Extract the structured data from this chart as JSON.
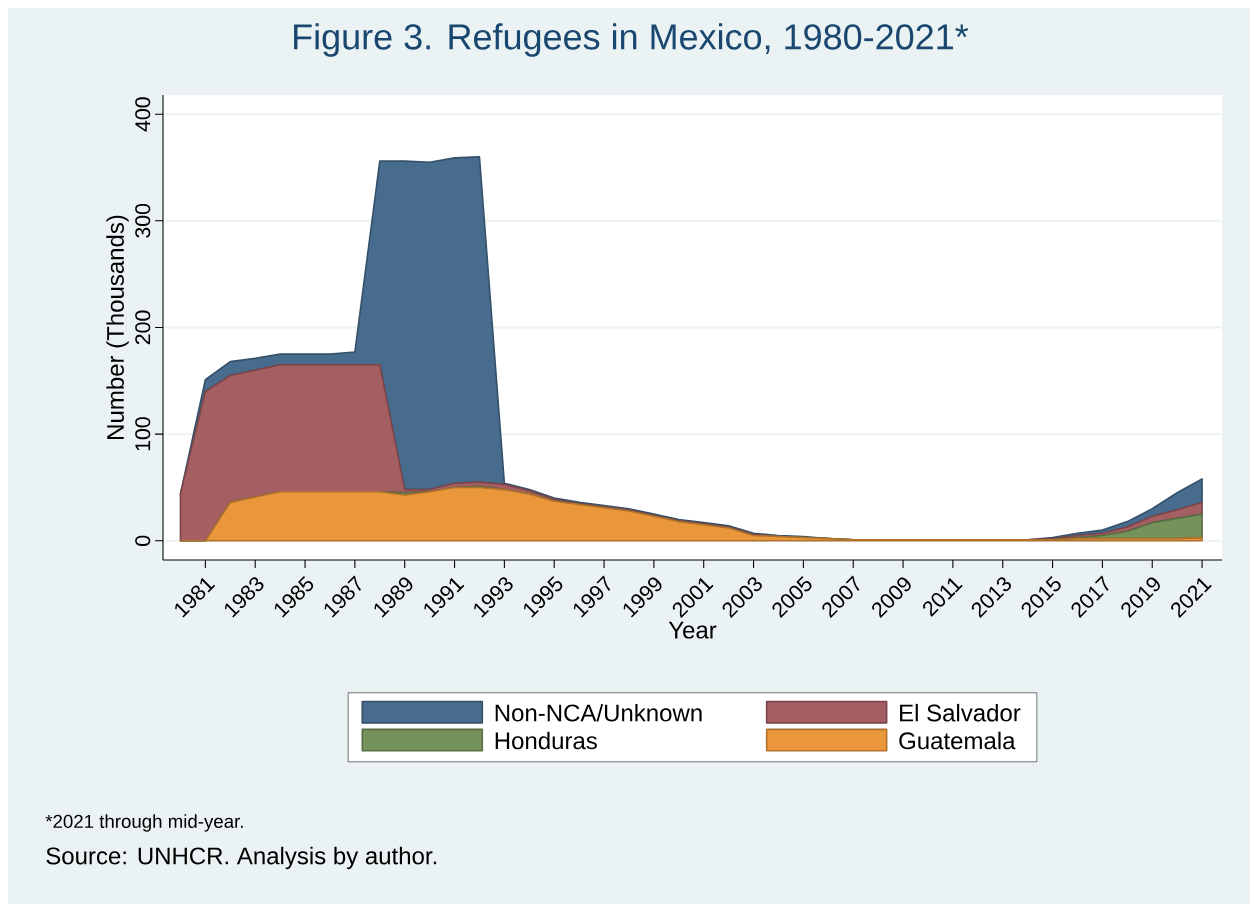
{
  "chart_data": {
    "type": "area",
    "title": "Figure 3. Refugees in Mexico, 1980-2021*",
    "xlabel": "Year",
    "ylabel": "Number (Thousands)",
    "x": [
      1980,
      1981,
      1982,
      1983,
      1984,
      1985,
      1986,
      1987,
      1988,
      1989,
      1990,
      1991,
      1992,
      1993,
      1994,
      1995,
      1996,
      1997,
      1998,
      1999,
      2000,
      2001,
      2002,
      2003,
      2004,
      2005,
      2006,
      2007,
      2008,
      2009,
      2010,
      2011,
      2012,
      2013,
      2014,
      2015,
      2016,
      2017,
      2018,
      2019,
      2020,
      2021
    ],
    "stacked": true,
    "series": [
      {
        "name": "Guatemala",
        "color": "#e9973a",
        "values": [
          0,
          0,
          36,
          41,
          46,
          46,
          46,
          46,
          46,
          43,
          46,
          50,
          50,
          48,
          44,
          37,
          34,
          31,
          28,
          23,
          18,
          15,
          12,
          5,
          4,
          3,
          2,
          1,
          1,
          1,
          1,
          1,
          1,
          1,
          1,
          1,
          2,
          2,
          2,
          2,
          2,
          3
        ]
      },
      {
        "name": "Honduras",
        "color": "#76925b",
        "values": [
          0,
          0,
          0,
          0,
          0,
          0,
          0,
          0,
          0,
          2,
          0,
          0,
          1,
          0,
          0,
          0,
          0,
          0,
          0,
          0,
          0,
          0,
          0,
          0,
          0,
          0,
          0,
          0,
          0,
          0,
          0,
          0,
          0,
          0,
          0,
          0,
          1,
          3,
          7,
          15,
          19,
          22
        ]
      },
      {
        "name": "El Salvador",
        "color": "#a55e62",
        "values": [
          44,
          140,
          119,
          119,
          119,
          119,
          119,
          119,
          119,
          3,
          2,
          4,
          4,
          5,
          3,
          2,
          1,
          1,
          1,
          1,
          1,
          1,
          1,
          1,
          0,
          0,
          0,
          0,
          0,
          0,
          0,
          0,
          0,
          0,
          0,
          1,
          2,
          2,
          4,
          6,
          8,
          11
        ]
      },
      {
        "name": "Non-NCA/Unknown",
        "color": "#476c8e",
        "values": [
          0,
          11,
          13,
          11,
          10,
          10,
          10,
          12,
          191,
          308,
          307,
          305,
          305,
          1,
          1,
          1,
          1,
          1,
          1,
          1,
          1,
          1,
          1,
          1,
          1,
          1,
          0,
          0,
          0,
          0,
          0,
          0,
          0,
          0,
          0,
          1,
          2,
          3,
          5,
          7,
          16,
          22
        ]
      }
    ],
    "xlim": [
      1979.3,
      2021.8
    ],
    "ylim": [
      -18,
      418
    ],
    "xticks": [
      1981,
      1983,
      1985,
      1987,
      1989,
      1991,
      1993,
      1995,
      1997,
      1999,
      2001,
      2003,
      2005,
      2007,
      2009,
      2011,
      2013,
      2015,
      2017,
      2019,
      2021
    ],
    "yticks": [
      0,
      100,
      200,
      300,
      400
    ],
    "grid": "y",
    "legend": "bottom",
    "marker": "none",
    "annotations": [
      "*2021 through mid-year.",
      "Source: UNHCR. Analysis by author."
    ]
  }
}
